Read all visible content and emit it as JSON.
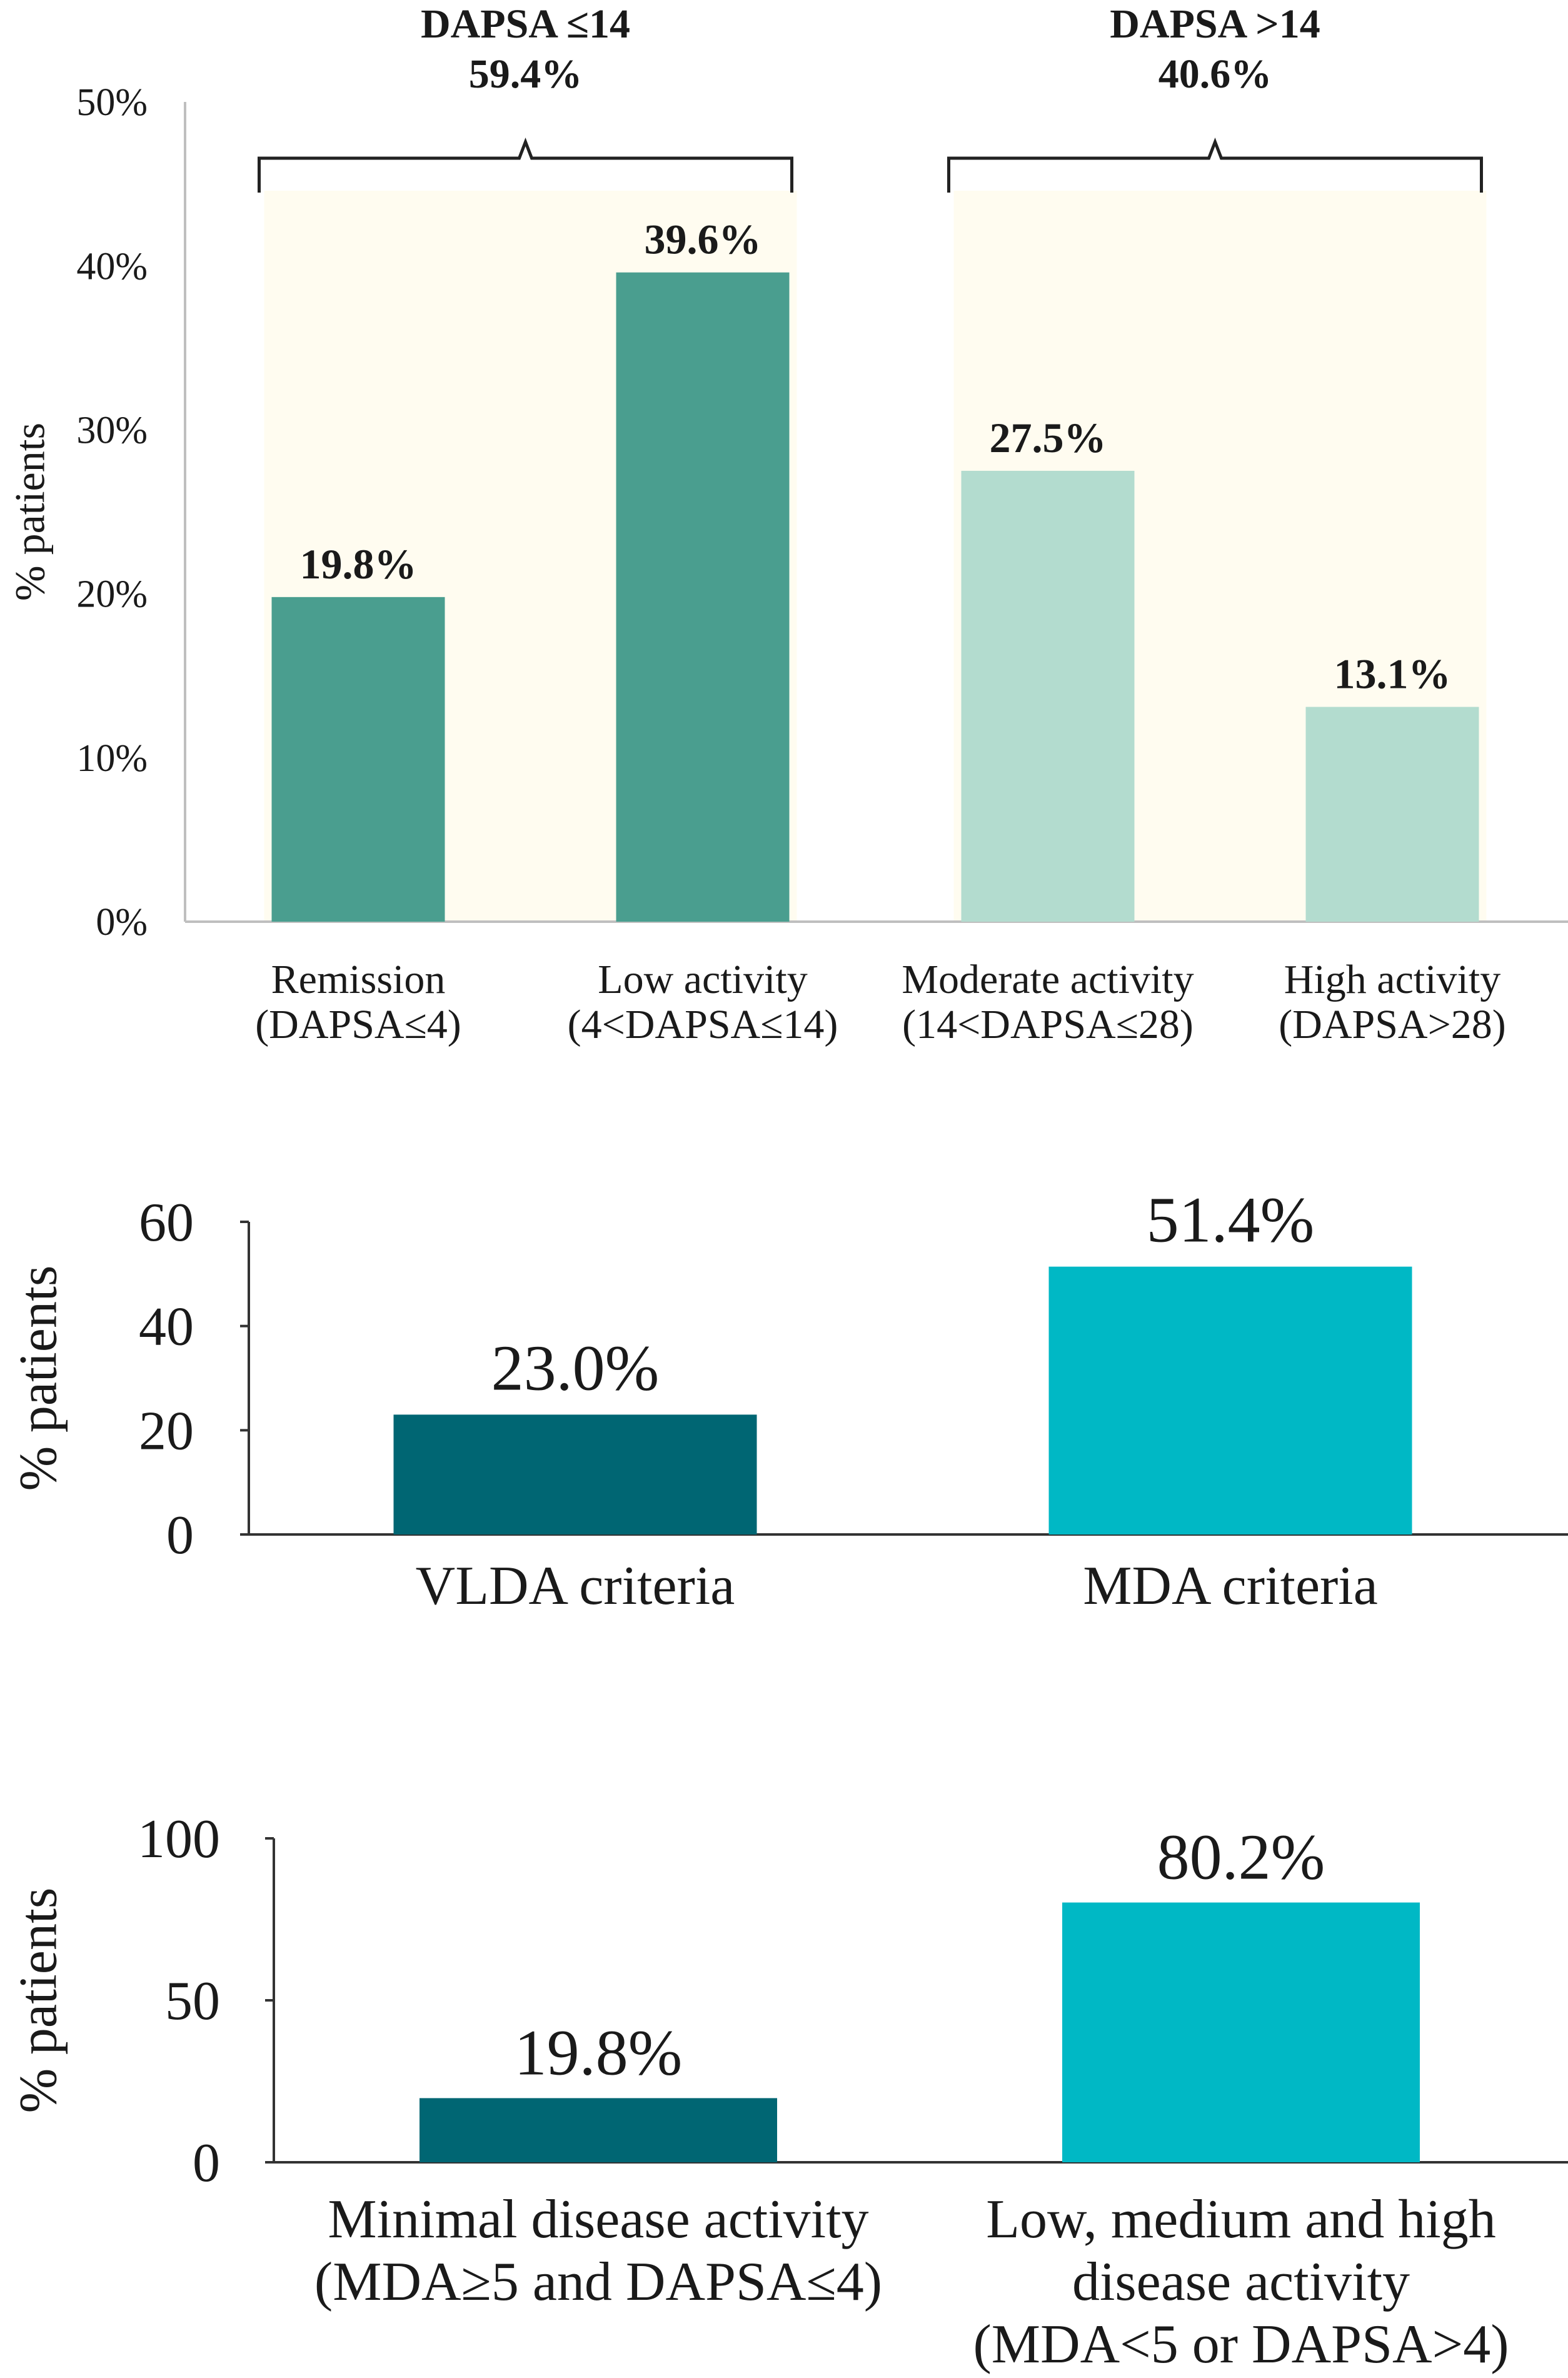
{
  "chart_data": [
    {
      "type": "bar",
      "ylabel": "% patients",
      "ylim": [
        0,
        50
      ],
      "yticks": [
        "0%",
        "10%",
        "20%",
        "30%",
        "40%",
        "50%"
      ],
      "categories": [
        [
          "Remission",
          "(DAPSA≤4)"
        ],
        [
          "Low activity",
          "(4<DAPSA≤14)"
        ],
        [
          "Moderate activity",
          "(14<DAPSA≤28)"
        ],
        [
          "High activity",
          "(DAPSA>28)"
        ]
      ],
      "values": [
        19.8,
        39.6,
        27.5,
        13.1
      ],
      "value_labels": [
        "19.8%",
        "39.6%",
        "27.5%",
        "13.1%"
      ],
      "colors": [
        "#4a9e8f",
        "#4a9e8f",
        "#b3dccf",
        "#b3dccf"
      ],
      "groups": [
        {
          "title": "DAPSA ≤14",
          "percent": "59.4%",
          "members": [
            0,
            1
          ]
        },
        {
          "title": "DAPSA >14",
          "percent": "40.6%",
          "members": [
            2,
            3
          ]
        }
      ],
      "group_background": "#fffcf0"
    },
    {
      "type": "bar",
      "ylabel": "% patients",
      "ylim": [
        0,
        60
      ],
      "yticks": [
        "0",
        "20",
        "40",
        "60"
      ],
      "categories": [
        [
          "VLDA criteria"
        ],
        [
          "MDA criteria"
        ]
      ],
      "values": [
        23.0,
        51.4
      ],
      "value_labels": [
        "23.0%",
        "51.4%"
      ],
      "colors": [
        "#006673",
        "#00b8c5"
      ]
    },
    {
      "type": "bar",
      "ylabel": "% patients",
      "ylim": [
        0,
        100
      ],
      "yticks": [
        "0",
        "50",
        "100"
      ],
      "categories": [
        [
          "Minimal disease activity",
          "(MDA≥5 and DAPSA≤4)"
        ],
        [
          "Low, medium and high",
          "disease activity",
          "(MDA<5 or DAPSA>4)"
        ]
      ],
      "values": [
        19.8,
        80.2
      ],
      "value_labels": [
        "19.8%",
        "80.2%"
      ],
      "colors": [
        "#006673",
        "#00b8c5"
      ]
    }
  ]
}
